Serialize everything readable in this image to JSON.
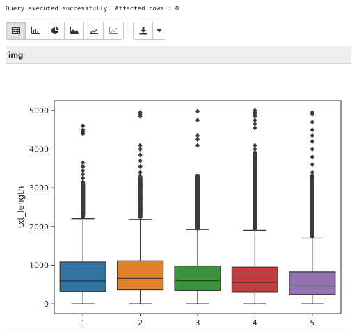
{
  "status": {
    "message": "Query executed successfully. Affected rows : 0"
  },
  "toolbar": {
    "view_buttons": [
      {
        "icon": "table-icon",
        "active": true
      },
      {
        "icon": "bar-chart-icon",
        "active": false
      },
      {
        "icon": "pie-chart-icon",
        "active": false
      },
      {
        "icon": "area-chart-icon",
        "active": false
      },
      {
        "icon": "line-chart-icon",
        "active": false
      },
      {
        "icon": "scatter-chart-icon",
        "active": false
      }
    ],
    "download_icon": "download-icon",
    "caret_icon": "caret-down-icon"
  },
  "header": {
    "title": "img"
  },
  "chart_data": {
    "type": "box",
    "title": "",
    "xlabel": "",
    "ylabel": "txt_length",
    "categories": [
      "1",
      "2",
      "3",
      "4",
      "5"
    ],
    "yticks": [
      0,
      1000,
      2000,
      3000,
      4000,
      5000
    ],
    "ylim": [
      -250,
      5250
    ],
    "grid": false,
    "boxes": [
      {
        "category": "1",
        "color": "#3274a1",
        "min": 0,
        "q1": 320,
        "median": 600,
        "q3": 1080,
        "whisker_high": 2200,
        "outliers_dense": [
          2300,
          3100
        ],
        "outliers": [
          2250,
          2350,
          2450,
          2550,
          2650,
          2750,
          2850,
          2950,
          3050,
          3150,
          3250,
          3350,
          3450,
          3550,
          3650,
          4400,
          4450,
          4500,
          4600
        ]
      },
      {
        "category": "2",
        "color": "#e1812c",
        "min": 0,
        "q1": 370,
        "median": 660,
        "q3": 1110,
        "whisker_high": 2180,
        "outliers_dense": [
          2250,
          3250
        ],
        "outliers": [
          2300,
          2400,
          2500,
          2600,
          2700,
          2800,
          2900,
          3000,
          3100,
          3200,
          3300,
          3400,
          3550,
          3700,
          3850,
          4000,
          4100,
          4850,
          4900,
          4950
        ]
      },
      {
        "category": "3",
        "color": "#3a923a",
        "min": 0,
        "q1": 350,
        "median": 600,
        "q3": 980,
        "whisker_high": 1920,
        "outliers_dense": [
          1950,
          3300
        ],
        "outliers": [
          2000,
          2100,
          2200,
          2300,
          2400,
          2500,
          2600,
          2700,
          2800,
          2900,
          3000,
          3100,
          3200,
          3300,
          4100,
          4250,
          4350,
          4750,
          4980
        ]
      },
      {
        "category": "4",
        "color": "#c03d3e",
        "min": 0,
        "q1": 310,
        "median": 560,
        "q3": 950,
        "whisker_high": 1900,
        "outliers_dense": [
          1950,
          3900
        ],
        "outliers": [
          2000,
          2200,
          2400,
          2600,
          2800,
          3000,
          3200,
          3400,
          3600,
          3800,
          4000,
          4100,
          4550,
          4650,
          4750,
          4850,
          4900,
          4950,
          5000
        ]
      },
      {
        "category": "5",
        "color": "#9372b2",
        "min": 0,
        "q1": 240,
        "median": 460,
        "q3": 830,
        "whisker_high": 1700,
        "outliers_dense": [
          1750,
          3300
        ],
        "outliers": [
          1800,
          1900,
          2000,
          2100,
          2200,
          2300,
          2400,
          2500,
          2600,
          2700,
          2800,
          2900,
          3000,
          3100,
          3200,
          3400,
          3600,
          3800,
          4000,
          4200,
          4350,
          4500,
          4700,
          4900,
          4950
        ]
      }
    ]
  }
}
